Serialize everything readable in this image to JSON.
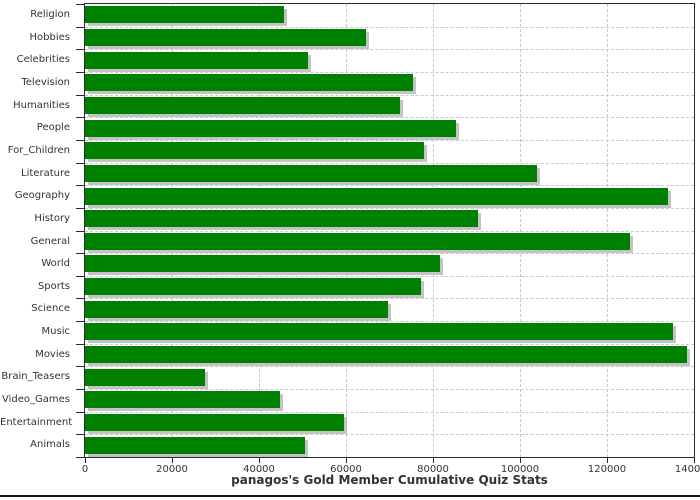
{
  "title": "panagos's Gold Member Cumulative Quiz Stats",
  "chart_data": {
    "type": "bar",
    "orientation": "horizontal",
    "title": "panagos's Gold Member Cumulative Quiz Stats",
    "xlabel": "",
    "ylabel": "",
    "categories": [
      "Religion",
      "Hobbies",
      "Celebrities",
      "Television",
      "Humanities",
      "People",
      "For_Children",
      "Literature",
      "Geography",
      "History",
      "General",
      "World",
      "Sports",
      "Science",
      "Music",
      "Movies",
      "Brain_Teasers",
      "Video_Games",
      "Entertainment",
      "Animals"
    ],
    "values": [
      45800,
      64500,
      51200,
      75300,
      72400,
      85400,
      77900,
      103800,
      134000,
      90400,
      125300,
      81600,
      77300,
      69700,
      135100,
      138300,
      27600,
      44800,
      59600,
      50600
    ],
    "xlim": [
      0,
      140000
    ],
    "x_ticks": [
      0,
      20000,
      40000,
      60000,
      80000,
      100000,
      120000,
      140000
    ],
    "x_tick_labels": [
      "0",
      "20000",
      "40000",
      "60000",
      "80000",
      "100000",
      "120000",
      "140000"
    ],
    "grid": true,
    "legend": "none",
    "bar_color": "#008000",
    "shadow_color": "#c4c4c4",
    "grid_color": "#c9c9cd",
    "frame_color": "#2b2b2b",
    "text_color": "#333333"
  }
}
